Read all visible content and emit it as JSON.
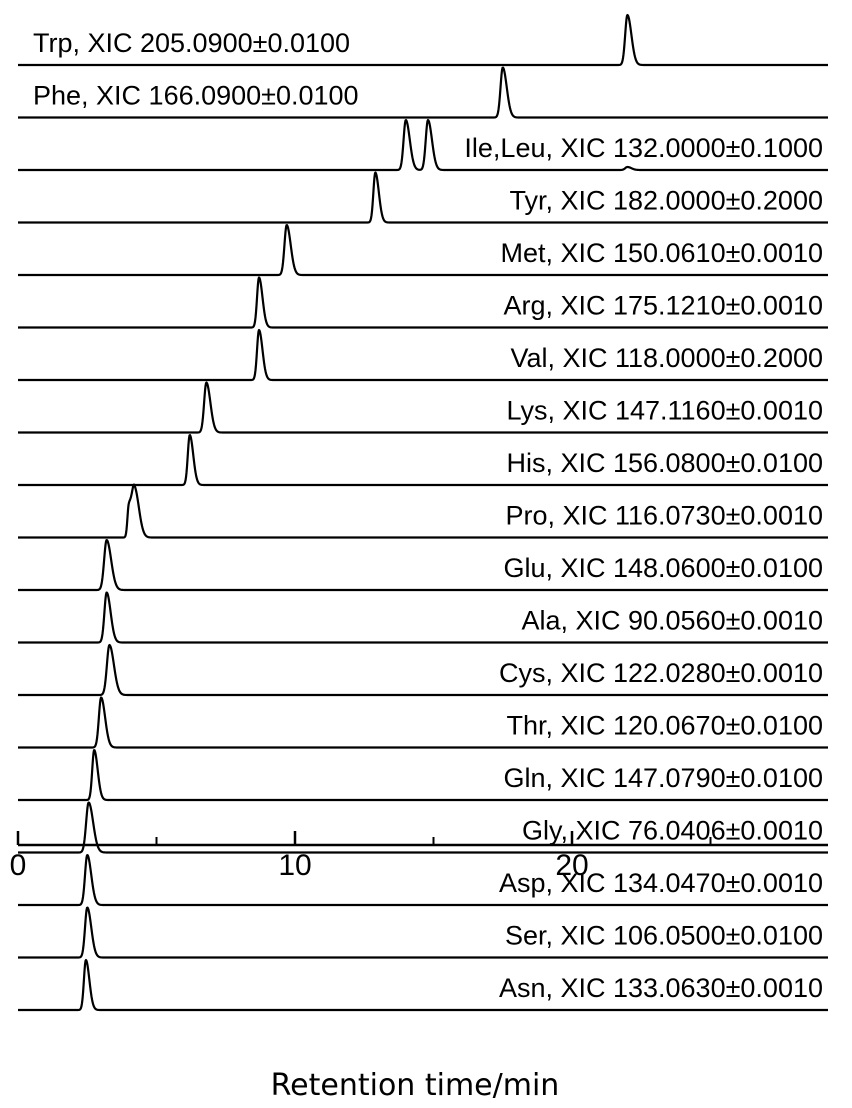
{
  "chart_data": {
    "type": "line",
    "title": "",
    "xlabel": "Retention time/min",
    "ylabel": "",
    "xlim": [
      0,
      29
    ],
    "xticks": [
      0,
      10,
      20
    ],
    "x_ticks_labels": [
      "0",
      "10",
      "20"
    ],
    "x_minor_ticks": [
      5,
      15,
      25
    ],
    "grid": false,
    "legend": "none",
    "line_color": "#000000",
    "series": [
      {
        "name": "Trp, XIC 205.0900±0.0100",
        "label_position": "left",
        "peaks": [
          {
            "rt": 22.0,
            "height": 1.0,
            "width": 0.08
          }
        ]
      },
      {
        "name": "Phe, XIC 166.0900±0.0100",
        "label_position": "left",
        "peaks": [
          {
            "rt": 17.5,
            "height": 1.0,
            "width": 0.08
          }
        ]
      },
      {
        "name": "Ile,Leu, XIC 132.0000±0.1000",
        "label_position": "right",
        "peaks": [
          {
            "rt": 14.0,
            "height": 1.0,
            "width": 0.08
          },
          {
            "rt": 14.8,
            "height": 1.0,
            "width": 0.08
          },
          {
            "rt": 22.0,
            "height": 0.06,
            "width": 0.08
          }
        ]
      },
      {
        "name": "Tyr, XIC 182.0000±0.2000",
        "label_position": "right",
        "peaks": [
          {
            "rt": 12.9,
            "height": 1.0,
            "width": 0.07
          }
        ]
      },
      {
        "name": "Met, XIC 150.0610±0.0010",
        "label_position": "right",
        "peaks": [
          {
            "rt": 9.7,
            "height": 1.0,
            "width": 0.08
          }
        ]
      },
      {
        "name": "Arg, XIC 175.1210±0.0010",
        "label_position": "right",
        "peaks": [
          {
            "rt": 8.7,
            "height": 1.0,
            "width": 0.07
          }
        ]
      },
      {
        "name": "Val, XIC 118.0000±0.2000",
        "label_position": "right",
        "peaks": [
          {
            "rt": 8.7,
            "height": 1.0,
            "width": 0.07
          }
        ]
      },
      {
        "name": "Lys, XIC 147.1160±0.0010",
        "label_position": "right",
        "peaks": [
          {
            "rt": 6.8,
            "height": 1.0,
            "width": 0.08
          }
        ]
      },
      {
        "name": "His, XIC 156.0800±0.0100",
        "label_position": "right",
        "peaks": [
          {
            "rt": 6.2,
            "height": 1.0,
            "width": 0.07
          }
        ]
      },
      {
        "name": "Pro, XIC 116.0730±0.0010",
        "label_position": "right",
        "peaks": [
          {
            "rt": 4.0,
            "height": 0.6,
            "width": 0.05
          },
          {
            "rt": 4.2,
            "height": 1.0,
            "width": 0.09
          }
        ]
      },
      {
        "name": "Glu, XIC 148.0600±0.0100",
        "label_position": "right",
        "peaks": [
          {
            "rt": 3.2,
            "height": 1.0,
            "width": 0.09
          }
        ]
      },
      {
        "name": "Ala, XIC 90.0560±0.0010",
        "label_position": "right",
        "peaks": [
          {
            "rt": 3.2,
            "height": 1.0,
            "width": 0.08
          }
        ]
      },
      {
        "name": "Cys, XIC 122.0280±0.0010",
        "label_position": "right",
        "peaks": [
          {
            "rt": 3.3,
            "height": 1.0,
            "width": 0.09
          }
        ]
      },
      {
        "name": "Thr, XIC 120.0670±0.0100",
        "label_position": "right",
        "peaks": [
          {
            "rt": 3.0,
            "height": 1.0,
            "width": 0.08
          }
        ]
      },
      {
        "name": "Gln, XIC 147.0790±0.0100",
        "label_position": "right",
        "peaks": [
          {
            "rt": 2.75,
            "height": 1.0,
            "width": 0.07
          }
        ]
      },
      {
        "name": "Gly, XIC 76.0406±0.0010",
        "label_position": "right",
        "peaks": [
          {
            "rt": 2.55,
            "height": 1.0,
            "width": 0.09
          }
        ]
      },
      {
        "name": "Asp, XIC 134.0470±0.0010",
        "label_position": "right",
        "peaks": [
          {
            "rt": 2.5,
            "height": 1.0,
            "width": 0.08
          }
        ]
      },
      {
        "name": "Ser, XIC 106.0500±0.0100",
        "label_position": "right",
        "peaks": [
          {
            "rt": 2.5,
            "height": 1.0,
            "width": 0.08
          }
        ]
      },
      {
        "name": "Asn, XIC 133.0630±0.0010",
        "label_position": "right",
        "peaks": [
          {
            "rt": 2.45,
            "height": 1.0,
            "width": 0.07
          }
        ]
      }
    ]
  }
}
